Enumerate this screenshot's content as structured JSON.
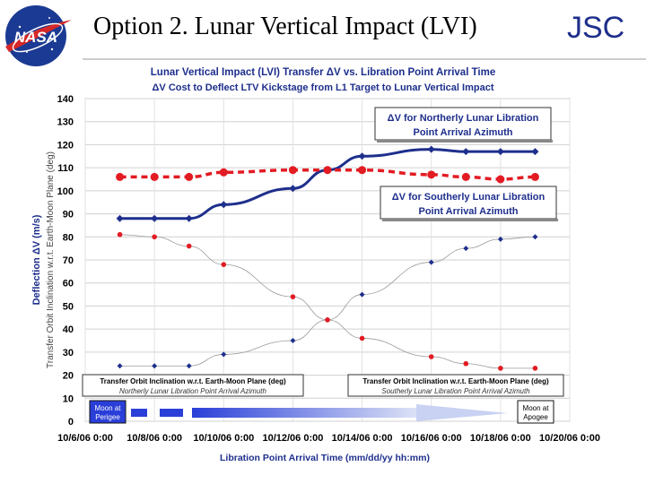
{
  "slide": {
    "title": "Option 2.  Lunar Vertical Impact (LVI)",
    "org_label": "JSC",
    "logo_text": "NASA"
  },
  "chart_data": {
    "type": "line",
    "title": "Lunar Vertical Impact (LVI) Transfer ΔV vs. Libration Point Arrival Time",
    "subtitle": "ΔV Cost to Deflect LTV Kickstage from L1 Target to Lunar Vertical Impact",
    "xlabel": "Libration Point Arrival Time  (mm/dd/yy    hh:mm)",
    "ylabel_primary": "Deflection ΔV  (m/s)",
    "ylabel_secondary": "Transfer Orbit Inclination w.r.t. Earth-Moon Plane (deg)",
    "ylim": [
      0,
      140
    ],
    "yticks": [
      0,
      10,
      20,
      30,
      40,
      50,
      60,
      70,
      80,
      90,
      100,
      110,
      120,
      130,
      140
    ],
    "xlim": [
      0,
      14
    ],
    "x_tick_positions": [
      0,
      2,
      4,
      6,
      8,
      10,
      12,
      14
    ],
    "x_tick_labels": [
      "10/6/06 0:00",
      "10/8/06 0:00",
      "10/10/06 0:00",
      "10/12/06 0:00",
      "10/14/06 0:00",
      "10/16/06 0:00",
      "10/18/06 0:00",
      "10/20/06 0:00"
    ],
    "x": [
      0,
      1,
      2,
      3,
      4,
      5,
      6,
      7,
      8,
      9,
      10,
      11,
      12,
      13
    ],
    "x_units": "days after 10/6/06 0:00",
    "grid": true,
    "series": [
      {
        "name": "ΔV for Northerly Lunar Libration Point Arrival Azimuth",
        "values": [
          null,
          88,
          88,
          88,
          94,
          null,
          101,
          109,
          115,
          null,
          118,
          117,
          117,
          117
        ],
        "color": "#1e2f8c",
        "style": "solid",
        "marker": "diamond"
      },
      {
        "name": "ΔV for Southerly Lunar Libration Point Arrival Azimuth",
        "values": [
          null,
          106,
          106,
          106,
          108,
          null,
          109,
          109,
          109,
          null,
          107,
          106,
          105,
          106
        ],
        "color": "#e31b23",
        "style": "dashed",
        "marker": "circle"
      },
      {
        "name": "Transfer Orbit Inclination w.r.t. Earth-Moon Plane (deg) Northerly Lunar Libration Point Arrival Azimuth",
        "values": [
          null,
          24,
          24,
          24,
          29,
          null,
          35,
          44,
          55,
          null,
          69,
          75,
          79,
          80
        ],
        "color": "#1e2f8c",
        "style": "thin",
        "marker": "diamond-small"
      },
      {
        "name": "Transfer Orbit Inclination w.r.t. Earth-Moon Plane (deg) Southerly Lunar Libration Point Arrival Azimuth",
        "values": [
          null,
          81,
          80,
          76,
          68,
          null,
          54,
          44,
          36,
          null,
          28,
          25,
          23,
          23
        ],
        "color": "#e31b23",
        "style": "thin",
        "marker": "circle-small"
      }
    ],
    "annotations": {
      "legend_north": [
        "ΔV for Northerly Lunar Libration",
        "Point Arrival Azimuth"
      ],
      "legend_south": [
        "ΔV for Southerly Lunar Libration",
        "Point Arrival Azimuth"
      ],
      "incl_north": [
        "Transfer Orbit Inclination w.r.t. Earth-Moon Plane (deg)",
        "Northerly Lunar Libration Point Arrival Azimuth"
      ],
      "incl_south": [
        "Transfer Orbit Inclination w.r.t. Earth-Moon Plane (deg)",
        "Southerly Lunar Libration Point Arrival Azimuth"
      ],
      "moon_perigee": [
        "Moon at",
        "Perigee"
      ],
      "moon_apogee": [
        "Moon at",
        "Apogee"
      ]
    }
  }
}
